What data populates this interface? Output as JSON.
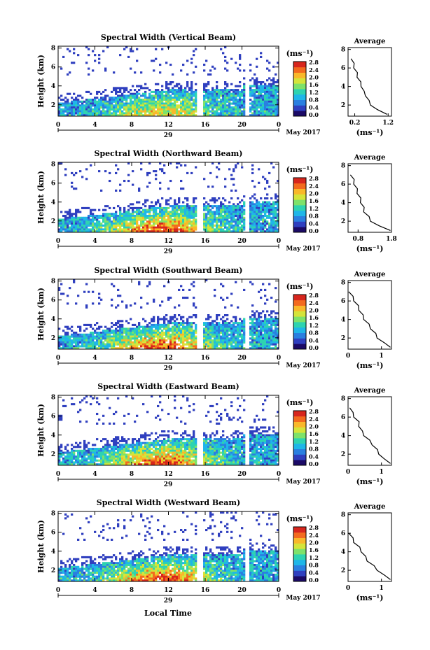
{
  "figure": {
    "xlabel_bottom": "Local Time",
    "date_label": "May 2017",
    "day_label": "29"
  },
  "chart_data": [
    {
      "type": "heatmap",
      "title": "Spectral Width (Vertical Beam)",
      "ylabel": "Height (km)",
      "x_ticks": [
        "0",
        "4",
        "8",
        "12",
        "16",
        "20",
        "0"
      ],
      "y_ticks": [
        "2",
        "4",
        "6",
        "8"
      ],
      "xlim": [
        0,
        24
      ],
      "ylim": [
        0.8,
        8.2
      ],
      "colorbar_unit": "(ms⁻¹)",
      "colorbar_ticks": [
        "0.0",
        "0.4",
        "0.8",
        "1.2",
        "1.6",
        "2.0",
        "2.4",
        "2.8"
      ],
      "colorbar_range": [
        0,
        2.8
      ],
      "avg_title": "Average",
      "avg_xlabel": "(ms⁻¹)",
      "avg_x_ticks": [
        "0.2",
        "1.2"
      ],
      "avg_xlim": [
        0,
        1.3
      ],
      "avg_y_ticks": [
        "2",
        "4",
        "6",
        "8"
      ],
      "avg_profile": {
        "height": [
          1,
          1.5,
          2,
          2.5,
          3,
          3.5,
          4,
          4.5,
          5,
          5.5,
          6,
          6.5,
          7
        ],
        "width": [
          1.2,
          0.85,
          0.7,
          0.6,
          0.55,
          0.45,
          0.42,
          0.35,
          0.3,
          0.25,
          0.2,
          0.15,
          0.12
        ]
      }
    },
    {
      "type": "heatmap",
      "title": "Spectral Width (Northward Beam)",
      "ylabel": "Height (km)",
      "x_ticks": [
        "0",
        "4",
        "8",
        "12",
        "16",
        "20",
        "0"
      ],
      "y_ticks": [
        "2",
        "4",
        "6",
        "8"
      ],
      "xlim": [
        0,
        24
      ],
      "ylim": [
        0.8,
        8.2
      ],
      "colorbar_unit": "(ms⁻¹)",
      "colorbar_ticks": [
        "0.0",
        "0.4",
        "0.8",
        "1.2",
        "1.6",
        "2.0",
        "2.4",
        "2.8"
      ],
      "colorbar_range": [
        0,
        2.8
      ],
      "avg_title": "Average",
      "avg_xlabel": "(ms⁻¹)",
      "avg_x_ticks": [
        "0.8",
        "1.8"
      ],
      "avg_xlim": [
        0.5,
        1.8
      ],
      "avg_y_ticks": [
        "2",
        "4",
        "6",
        "8"
      ],
      "avg_profile": {
        "height": [
          1,
          1.5,
          2,
          2.5,
          3,
          3.5,
          4,
          4.5,
          5,
          5.5,
          6,
          6.5,
          7
        ],
        "width": [
          1.8,
          1.4,
          1.2,
          1.1,
          1.0,
          0.95,
          0.9,
          0.85,
          0.8,
          0.75,
          0.7,
          0.65,
          0.6
        ]
      }
    },
    {
      "type": "heatmap",
      "title": "Spectral Width (Southward Beam)",
      "ylabel": "Height (km)",
      "x_ticks": [
        "0",
        "4",
        "8",
        "12",
        "16",
        "20",
        "0"
      ],
      "y_ticks": [
        "2",
        "4",
        "6",
        "8"
      ],
      "xlim": [
        0,
        24
      ],
      "ylim": [
        0.8,
        8.2
      ],
      "colorbar_unit": "(ms⁻¹)",
      "colorbar_ticks": [
        "0.0",
        "0.4",
        "0.8",
        "1.2",
        "1.6",
        "2.0",
        "2.4",
        "2.8"
      ],
      "colorbar_range": [
        0,
        2.8
      ],
      "avg_title": "Average",
      "avg_xlabel": "(ms⁻¹)",
      "avg_x_ticks": [
        "0",
        "1"
      ],
      "avg_xlim": [
        0,
        1.3
      ],
      "avg_y_ticks": [
        "2",
        "4",
        "6",
        "8"
      ],
      "avg_profile": {
        "height": [
          1,
          1.5,
          2,
          2.5,
          3,
          3.5,
          4,
          4.5,
          5,
          5.5,
          6,
          6.5,
          7
        ],
        "width": [
          1.3,
          1.05,
          0.9,
          0.8,
          0.7,
          0.6,
          0.5,
          0.42,
          0.35,
          0.28,
          0.2,
          0.12,
          0.05
        ]
      }
    },
    {
      "type": "heatmap",
      "title": "Spectral Width (Eastward Beam)",
      "ylabel": "Height (km)",
      "x_ticks": [
        "0",
        "4",
        "8",
        "12",
        "16",
        "20",
        "0"
      ],
      "y_ticks": [
        "2",
        "4",
        "6",
        "8"
      ],
      "xlim": [
        0,
        24
      ],
      "ylim": [
        0.8,
        8.2
      ],
      "colorbar_unit": "(ms⁻¹)",
      "colorbar_ticks": [
        "0.0",
        "0.4",
        "0.8",
        "1.2",
        "1.6",
        "2.0",
        "2.4",
        "2.8"
      ],
      "colorbar_range": [
        0,
        2.8
      ],
      "avg_title": "Average",
      "avg_xlabel": "(ms⁻¹)",
      "avg_x_ticks": [
        "0",
        "1"
      ],
      "avg_xlim": [
        0,
        1.3
      ],
      "avg_y_ticks": [
        "2",
        "4",
        "6",
        "8"
      ],
      "avg_profile": {
        "height": [
          1,
          1.5,
          2,
          2.5,
          3,
          3.5,
          4,
          4.5,
          5,
          5.5,
          6,
          6.5,
          7
        ],
        "width": [
          1.3,
          1.05,
          0.95,
          0.85,
          0.75,
          0.62,
          0.5,
          0.4,
          0.35,
          0.3,
          0.2,
          0.12,
          0.08
        ]
      }
    },
    {
      "type": "heatmap",
      "title": "Spectral Width (Westward Beam)",
      "ylabel": "Height (km)",
      "x_ticks": [
        "0",
        "4",
        "8",
        "12",
        "16",
        "20",
        "0"
      ],
      "y_ticks": [
        "2",
        "4",
        "6",
        "8"
      ],
      "xlim": [
        0,
        24
      ],
      "ylim": [
        0.8,
        8.2
      ],
      "colorbar_unit": "(ms⁻¹)",
      "colorbar_ticks": [
        "0.0",
        "0.4",
        "0.8",
        "1.2",
        "1.6",
        "2.0",
        "2.4",
        "2.8"
      ],
      "colorbar_range": [
        0,
        2.8
      ],
      "avg_title": "Average",
      "avg_xlabel": "(ms⁻¹)",
      "avg_x_ticks": [
        "0",
        "1"
      ],
      "avg_xlim": [
        0,
        1.3
      ],
      "avg_y_ticks": [
        "2",
        "4",
        "6",
        "8"
      ],
      "avg_profile": {
        "height": [
          1,
          1.5,
          2,
          2.5,
          3,
          3.5,
          4,
          4.5,
          5,
          5.5,
          6
        ],
        "width": [
          1.3,
          1.05,
          0.9,
          0.75,
          0.6,
          0.5,
          0.42,
          0.32,
          0.2,
          0.12,
          0.05
        ]
      }
    }
  ],
  "colors": {
    "colormap": [
      "#1b0a66",
      "#2f3fbf",
      "#2a7fe0",
      "#1fb6e8",
      "#2ed3b0",
      "#7ee26a",
      "#d5e43a",
      "#f9b82a",
      "#f36a1e",
      "#d7261d"
    ]
  }
}
